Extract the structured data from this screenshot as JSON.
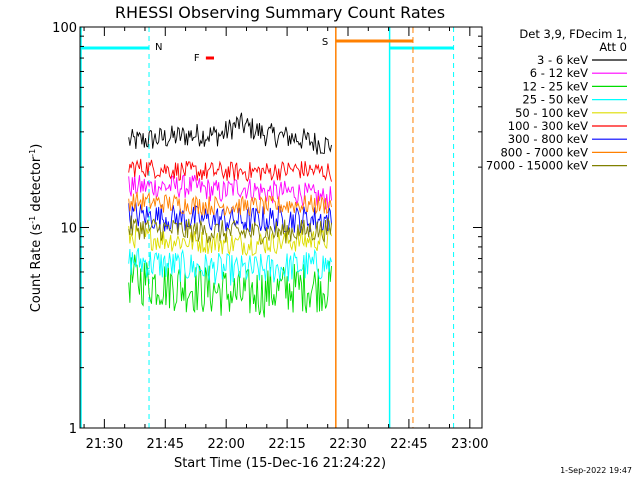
{
  "chart_data": {
    "type": "line",
    "title": "RHESSI Observing Summary Count Rates",
    "ylabel": "Count Rate (s⁻¹ detector⁻¹)",
    "ylabel_main": "Count Rate (s",
    "ylabel_sup1": "-1",
    "ylabel_mid": " detector",
    "ylabel_sup2": "-1",
    "ylabel_end": ")",
    "xlabel": "Start Time (15-Dec-16 21:24:22)",
    "y_scale": "log",
    "ylim": [
      1,
      100
    ],
    "y_ticks": [
      {
        "value": 1,
        "label": "1"
      },
      {
        "value": 10,
        "label": "10"
      },
      {
        "value": 100,
        "label": "100"
      }
    ],
    "xlim": [
      "21:24",
      "23:03"
    ],
    "x_ticks": [
      {
        "value": "21:30",
        "label": "21:30"
      },
      {
        "value": "21:45",
        "label": "21:45"
      },
      {
        "value": "22:00",
        "label": "22:00"
      },
      {
        "value": "22:15",
        "label": "22:15"
      },
      {
        "value": "22:30",
        "label": "22:30"
      },
      {
        "value": "22:45",
        "label": "22:45"
      },
      {
        "value": "23:00",
        "label": "23:00"
      }
    ],
    "legend_header": [
      "Det 3,9, FDecim 1,",
      "Att 0"
    ],
    "legend_placement": "right",
    "series": [
      {
        "name": "3 - 6 keV",
        "color": "#000000",
        "x": [
          "21:38",
          "21:45",
          "21:52",
          "21:59",
          "22:03",
          "22:10",
          "22:17",
          "22:24"
        ],
        "values": [
          27,
          28,
          29,
          29,
          33,
          29,
          28,
          26
        ]
      },
      {
        "name": "6 - 12 keV",
        "color": "#ff00ff",
        "x": [
          "21:38",
          "21:45",
          "21:52",
          "21:59",
          "22:03",
          "22:10",
          "22:17",
          "22:24"
        ],
        "values": [
          16,
          16,
          16,
          15,
          16,
          15,
          15,
          14
        ]
      },
      {
        "name": "12 - 25 keV",
        "color": "#00dd00",
        "x": [
          "21:38",
          "21:45",
          "21:52",
          "21:59",
          "22:03",
          "22:10",
          "22:17",
          "22:24"
        ],
        "values": [
          5.5,
          5.2,
          5.0,
          4.8,
          4.6,
          4.8,
          5.0,
          5.1
        ]
      },
      {
        "name": "25 - 50 keV",
        "color": "#00ffff",
        "x": [
          "21:38",
          "21:45",
          "21:52",
          "21:59",
          "22:03",
          "22:10",
          "22:17",
          "22:24"
        ],
        "values": [
          6.8,
          6.5,
          6.3,
          6.2,
          6.1,
          6.2,
          6.4,
          6.5
        ]
      },
      {
        "name": "50 - 100 keV",
        "color": "#dddd00",
        "x": [
          "21:38",
          "21:45",
          "21:52",
          "21:59",
          "22:03",
          "22:10",
          "22:17",
          "22:24"
        ],
        "values": [
          9.0,
          8.7,
          8.5,
          8.4,
          8.3,
          8.4,
          8.6,
          8.7
        ]
      },
      {
        "name": "100 - 300 keV",
        "color": "#ff0000",
        "x": [
          "21:38",
          "21:45",
          "21:52",
          "21:59",
          "22:03",
          "22:10",
          "22:17",
          "22:24"
        ],
        "values": [
          20,
          19.5,
          19,
          19,
          19,
          19,
          19.5,
          19
        ]
      },
      {
        "name": "300 - 800 keV",
        "color": "#0000ff",
        "x": [
          "21:38",
          "21:45",
          "21:52",
          "21:59",
          "22:03",
          "22:10",
          "22:17",
          "22:24"
        ],
        "values": [
          11.5,
          11.2,
          11,
          11,
          10.8,
          11,
          11,
          11
        ]
      },
      {
        "name": "800 - 7000 keV",
        "color": "#ff8000",
        "x": [
          "21:38",
          "21:45",
          "21:52",
          "21:59",
          "22:03",
          "22:10",
          "22:17",
          "22:24"
        ],
        "values": [
          13.5,
          13.2,
          13,
          12.8,
          12.8,
          12.8,
          13,
          13
        ]
      },
      {
        "name": "7000 - 15000 keV",
        "color": "#808000",
        "x": [
          "21:38",
          "21:45",
          "21:52",
          "21:59",
          "22:03",
          "22:10",
          "22:17",
          "22:24"
        ],
        "values": [
          10,
          9.8,
          9.6,
          9.5,
          9.4,
          9.5,
          9.6,
          9.7
        ]
      }
    ],
    "annotations": {
      "night_label": "N",
      "flare_label": "F",
      "saa_label": "S",
      "night_intervals": [
        [
          "21:24",
          "21:41"
        ],
        [
          "22:40",
          "22:56"
        ]
      ],
      "saa_interval": [
        "22:27",
        "22:46"
      ],
      "flare_interval": [
        "21:55",
        "21:57"
      ],
      "night_color": "#00ffff",
      "saa_color": "#ff8000",
      "flare_color": "#ff0000"
    },
    "timestamp": "1-Sep-2022 19:47"
  }
}
